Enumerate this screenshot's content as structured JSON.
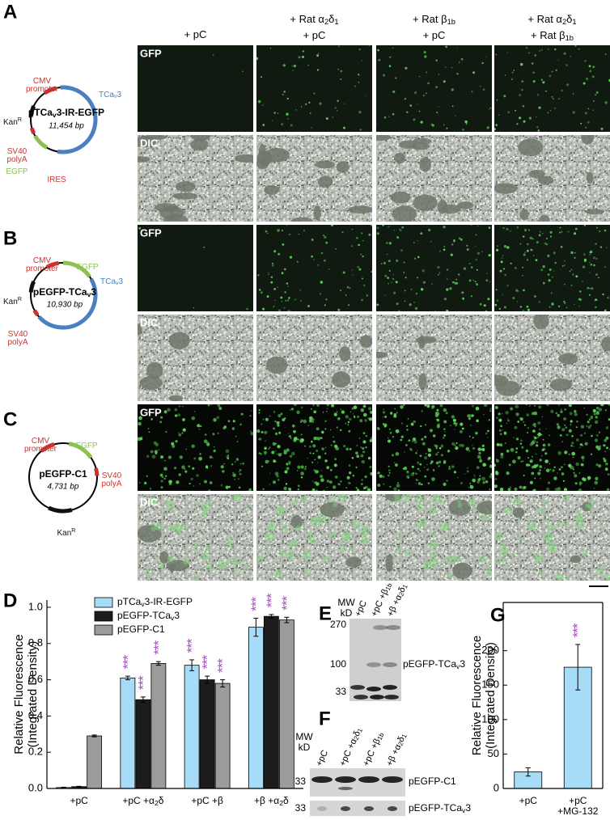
{
  "panel_labels": [
    "A",
    "B",
    "C",
    "D",
    "E",
    "F",
    "G"
  ],
  "column_headers": [
    [
      [
        "+ pC"
      ]
    ],
    [
      [
        "+ Rat α",
        {
          "sub": "2"
        },
        "δ",
        {
          "sub": "1"
        }
      ],
      [
        "+ pC"
      ]
    ],
    [
      [
        "+ Rat β",
        {
          "sub": "1b"
        }
      ],
      [
        "+ pC"
      ]
    ],
    [
      [
        "+ Rat α",
        {
          "sub": "2"
        },
        "δ",
        {
          "sub": "1"
        }
      ],
      [
        "+ Rat β",
        {
          "sub": "1b"
        }
      ]
    ]
  ],
  "image_rows": [
    "GFP",
    "DIC",
    "GFP",
    "DIC",
    "GFP",
    "DIC"
  ],
  "plasmids": [
    {
      "name": [
        "pTCa",
        {
          "sub": "v"
        },
        "3-IR-EGFP"
      ],
      "size": "11,454 bp",
      "features": [
        {
          "lines": [
            [
              "CMV"
            ],
            [
              "promoter"
            ]
          ],
          "color": "#d0312d"
        },
        {
          "lines": [
            [
              "TCa",
              {
                "sub": "v"
              },
              "3"
            ]
          ],
          "color": "#4a7fc1"
        },
        {
          "lines": [
            [
              "Kan",
              {
                "sup": "R"
              }
            ]
          ],
          "color": "#111111"
        },
        {
          "lines": [
            [
              "SV40"
            ],
            [
              "polyA"
            ]
          ],
          "color": "#d0312d"
        },
        {
          "lines": [
            [
              "EGFP"
            ]
          ],
          "color": "#8cc152"
        },
        {
          "lines": [
            [
              "IRES"
            ]
          ],
          "color": "#d0312d"
        }
      ]
    },
    {
      "name": [
        "pEGFP-TCa",
        {
          "sub": "v"
        },
        "3"
      ],
      "size": "10,930 bp",
      "features": [
        {
          "lines": [
            [
              "CMV"
            ],
            [
              "promoter"
            ]
          ],
          "color": "#d0312d"
        },
        {
          "lines": [
            [
              "EGFP"
            ]
          ],
          "color": "#8cc152"
        },
        {
          "lines": [
            [
              "TCa",
              {
                "sub": "v"
              },
              "3"
            ]
          ],
          "color": "#4a7fc1"
        },
        {
          "lines": [
            [
              "Kan",
              {
                "sup": "R"
              }
            ]
          ],
          "color": "#111111"
        },
        {
          "lines": [
            [
              "SV40"
            ],
            [
              "polyA"
            ]
          ],
          "color": "#d0312d"
        }
      ]
    },
    {
      "name": [
        "pEGFP-C1"
      ],
      "size": "4,731 bp",
      "features": [
        {
          "lines": [
            [
              "CMV"
            ],
            [
              "promoter"
            ]
          ],
          "color": "#d0312d"
        },
        {
          "lines": [
            [
              "EGFP"
            ]
          ],
          "color": "#8cc152"
        },
        {
          "lines": [
            [
              "SV40"
            ],
            [
              "polyA"
            ]
          ],
          "color": "#d0312d"
        },
        {
          "lines": [
            [
              "Kan",
              {
                "sup": "R"
              }
            ]
          ],
          "color": "#111111"
        }
      ]
    }
  ],
  "chart_data": [
    {
      "type": "bar",
      "y_label": [
        "Relative Fluorescence",
        "(Integrated Density)"
      ],
      "categories": [
        [
          "+pC"
        ],
        [
          "+pC +α",
          {
            "sub": "2"
          },
          "δ"
        ],
        [
          "+pC +β"
        ],
        [
          "+β +α",
          {
            "sub": "2"
          },
          "δ"
        ]
      ],
      "series": [
        {
          "name": [
            "pTCa",
            {
              "sub": "v"
            },
            "3-IR-EGFP"
          ],
          "color": "#a6dcf7",
          "values": [
            0.005,
            0.61,
            0.68,
            0.89
          ],
          "errors": [
            0.002,
            0.01,
            0.03,
            0.05
          ],
          "annotations": [
            null,
            "***",
            "***",
            "***"
          ]
        },
        {
          "name": [
            "pEGFP-TCa",
            {
              "sub": "v"
            },
            "3"
          ],
          "color": "#1c1c1c",
          "values": [
            0.01,
            0.49,
            0.6,
            0.95
          ],
          "errors": [
            0.002,
            0.015,
            0.02,
            0.01
          ],
          "annotations": [
            null,
            "***",
            "***",
            "***"
          ]
        },
        {
          "name": [
            "pEGFP-C1"
          ],
          "color": "#9b9b9b",
          "values": [
            0.29,
            0.69,
            0.58,
            0.93
          ],
          "errors": [
            0.005,
            0.01,
            0.02,
            0.015
          ],
          "annotations": [
            null,
            "***",
            "***",
            "***"
          ]
        }
      ],
      "annotation_color": "#a24fc0",
      "ylim": [
        0,
        1.04
      ],
      "yticks": [
        {
          "value": 0,
          "label": "0.0"
        },
        0.2,
        0.4,
        0.6,
        0.8,
        {
          "value": 1,
          "label": "1.0"
        }
      ]
    },
    {
      "type": "bar",
      "y_label": [
        "Relative Fluorescence",
        "(Integrated Density)"
      ],
      "categories": [
        "+pC",
        "+pC +MG-132"
      ],
      "values": [
        24,
        176
      ],
      "errors": [
        6,
        33
      ],
      "annotations": [
        null,
        "***"
      ],
      "annotation_color": "#a24fc0",
      "color": "#a6dcf7",
      "ylim": [
        0,
        270
      ],
      "yticks": [
        0,
        50,
        100,
        150,
        200
      ]
    }
  ],
  "blots": {
    "E": {
      "mw_label": [
        "MW",
        "kD"
      ],
      "markers": [
        270,
        100,
        33
      ],
      "lanes": [
        [
          "+pC"
        ],
        [
          "+pC +β",
          {
            "sub": "1b"
          }
        ],
        [
          "+β +α",
          {
            "sub": "2"
          },
          "δ",
          {
            "sub": "1"
          }
        ]
      ],
      "band_labels": [
        [
          "pEGFP-TCa",
          {
            "sub": "v"
          },
          "3"
        ]
      ]
    },
    "F": {
      "mw_label": [
        "MW",
        "kD"
      ],
      "markers": [
        33,
        33
      ],
      "lanes": [
        [
          "+pC"
        ],
        [
          "+pC +α",
          {
            "sub": "2"
          },
          "δ",
          {
            "sub": "1"
          }
        ],
        [
          "+pC +β",
          {
            "sub": "1b"
          }
        ],
        [
          "+β +α",
          {
            "sub": "2"
          },
          "δ",
          {
            "sub": "1"
          }
        ]
      ],
      "band_labels": [
        [
          "pEGFP-C1"
        ],
        [
          "pEGFP-TCa",
          {
            "sub": "v"
          },
          "3"
        ]
      ]
    }
  }
}
